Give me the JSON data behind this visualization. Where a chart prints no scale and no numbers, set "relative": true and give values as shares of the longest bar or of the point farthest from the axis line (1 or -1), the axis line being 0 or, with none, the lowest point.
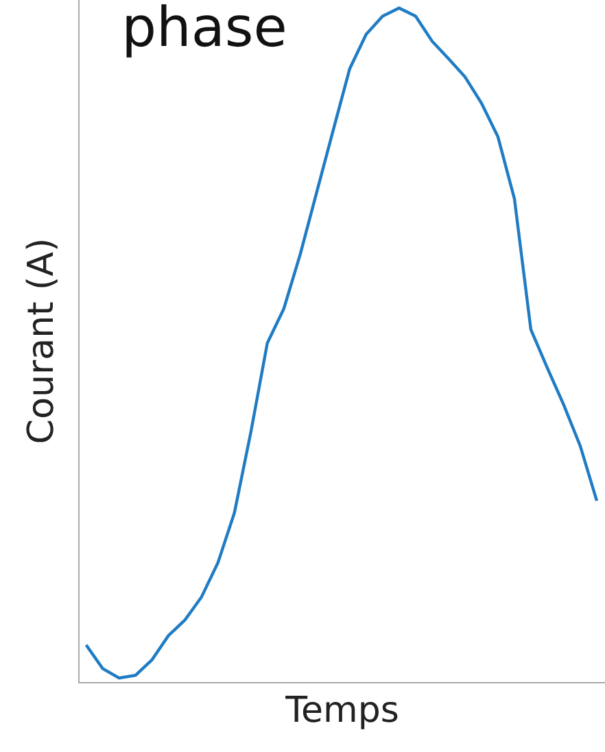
{
  "chart_data": {
    "type": "line",
    "title": "phase",
    "xlabel": "Temps",
    "ylabel": "Courant (A)",
    "relative": true,
    "color": "#1f7cc4",
    "marker": "none",
    "line_style": "solid",
    "grid": false,
    "legend": false,
    "categories": [
      null,
      null,
      null,
      null,
      null,
      null,
      null,
      null,
      null,
      null,
      null,
      null,
      null,
      null,
      null,
      null,
      null,
      null,
      null,
      null,
      null,
      null,
      null,
      null,
      null,
      null,
      null,
      null,
      null,
      null,
      null,
      null
    ],
    "values": [
      0.055,
      0.02,
      0.006,
      0.01,
      0.033,
      0.069,
      0.092,
      0.126,
      0.177,
      0.251,
      0.371,
      0.503,
      0.554,
      0.635,
      0.727,
      0.819,
      0.91,
      0.961,
      0.988,
      1.0,
      0.988,
      0.951,
      0.925,
      0.898,
      0.859,
      0.809,
      0.717,
      0.523,
      0.466,
      0.411,
      0.35,
      0.269
    ]
  }
}
